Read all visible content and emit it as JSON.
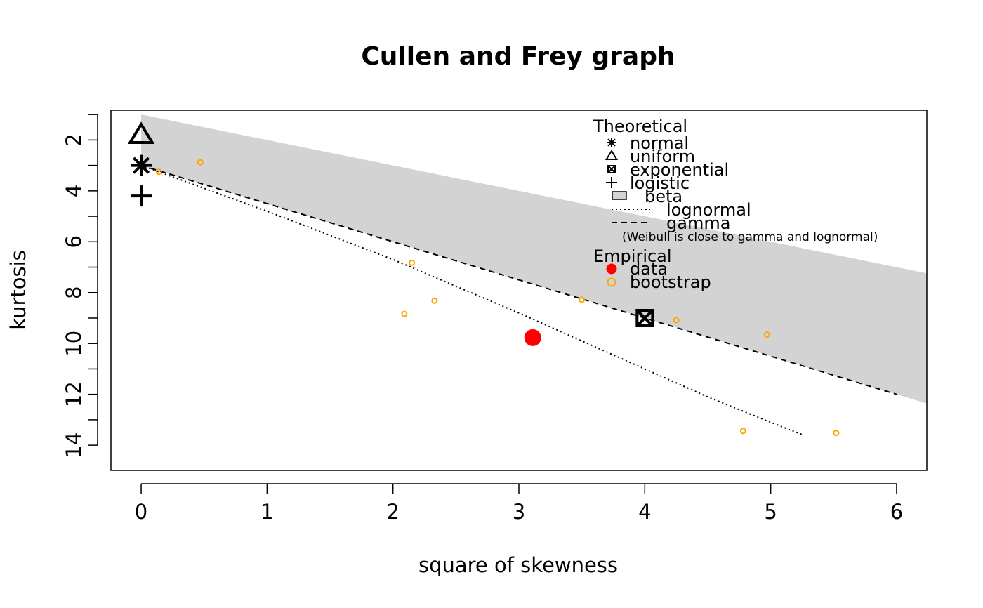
{
  "chart_data": {
    "type": "scatter",
    "title": "Cullen and Frey graph",
    "xlabel": "square of skewness",
    "ylabel": "kurtosis",
    "xlim": [
      -0.24,
      6.24
    ],
    "ylim": [
      14.99,
      0.83
    ],
    "y_reversed": true,
    "x_ticks": [
      0,
      1,
      2,
      3,
      4,
      5,
      6
    ],
    "x_tick_labels": [
      "0",
      "1",
      "2",
      "3",
      "4",
      "5",
      "6"
    ],
    "y_ticks": [
      2,
      4,
      6,
      8,
      10,
      12,
      14
    ],
    "y_tick_labels": [
      "2",
      "4",
      "6",
      "8",
      "10",
      "12",
      "14"
    ],
    "y_minor_ticks": [
      1,
      3,
      5,
      7,
      9,
      11,
      13
    ],
    "beta_region": {
      "upper": [
        [
          0,
          1
        ],
        [
          6.24,
          7.24
        ]
      ],
      "lower": [
        [
          0,
          3
        ],
        [
          6.24,
          12.36
        ]
      ]
    },
    "lognormal_line": [
      [
        0,
        3
      ],
      [
        0.5,
        3.9
      ],
      [
        1,
        4.8
      ],
      [
        1.5,
        5.75
      ],
      [
        2,
        6.7
      ],
      [
        2.5,
        7.75
      ],
      [
        3,
        8.8
      ],
      [
        3.5,
        9.9
      ],
      [
        4,
        11.0
      ],
      [
        4.5,
        12.1
      ],
      [
        5,
        13.1
      ],
      [
        5.26,
        13.6
      ]
    ],
    "gamma_line": [
      [
        0,
        3
      ],
      [
        6.0,
        12.0
      ]
    ],
    "theoretical_points": [
      {
        "name": "normal",
        "x": 0,
        "y": 3,
        "symbol": "asterisk"
      },
      {
        "name": "uniform",
        "x": 0,
        "y": 1.8,
        "symbol": "triangle"
      },
      {
        "name": "exponential",
        "x": 4,
        "y": 9,
        "symbol": "boxed-x"
      },
      {
        "name": "logistic",
        "x": 0,
        "y": 4.2,
        "symbol": "plus"
      }
    ],
    "data_point": {
      "x": 3.11,
      "y": 9.77
    },
    "bootstrap": [
      {
        "x": 0.14,
        "y": 3.25
      },
      {
        "x": 0.47,
        "y": 2.88
      },
      {
        "x": 2.15,
        "y": 6.83
      },
      {
        "x": 2.33,
        "y": 8.32
      },
      {
        "x": 2.09,
        "y": 8.84
      },
      {
        "x": 3.5,
        "y": 8.28
      },
      {
        "x": 4.25,
        "y": 9.08
      },
      {
        "x": 4.97,
        "y": 9.65
      },
      {
        "x": 4.78,
        "y": 13.44
      },
      {
        "x": 5.52,
        "y": 13.52
      }
    ],
    "colors": {
      "beta_fill": "#d3d3d3",
      "data": "#ff0000",
      "bootstrap": "#ffa500",
      "lines": "#000000"
    },
    "legend": {
      "placement": "top-right",
      "theoretical_heading": "Theoretical",
      "theoretical_items": [
        "normal",
        "uniform",
        "exponential",
        "logistic",
        "beta",
        "lognormal",
        "gamma"
      ],
      "note": "(Weibull is close to gamma and lognormal)",
      "empirical_heading": "Empirical",
      "empirical_items": [
        "data",
        "bootstrap"
      ]
    }
  }
}
